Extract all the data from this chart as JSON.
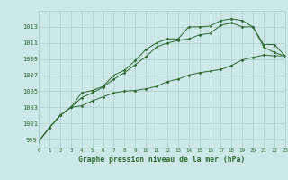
{
  "x": [
    0,
    1,
    2,
    3,
    4,
    5,
    6,
    7,
    8,
    9,
    10,
    11,
    12,
    13,
    14,
    15,
    16,
    17,
    18,
    19,
    20,
    21,
    22,
    23
  ],
  "line1": [
    998.8,
    1000.5,
    1002.0,
    1003.0,
    1003.2,
    1003.8,
    1004.3,
    1004.8,
    1005.0,
    1005.1,
    1005.3,
    1005.6,
    1006.2,
    1006.5,
    1007.0,
    1007.3,
    1007.5,
    1007.7,
    1008.2,
    1008.9,
    1009.2,
    1009.5,
    1009.4,
    1009.4
  ],
  "line2": [
    998.8,
    1000.5,
    1002.0,
    1003.0,
    1004.2,
    1004.8,
    1005.5,
    1006.5,
    1007.3,
    1008.3,
    1009.3,
    1010.5,
    1011.0,
    1011.3,
    1011.5,
    1012.0,
    1012.2,
    1013.2,
    1013.5,
    1013.0,
    1013.0,
    1010.5,
    1009.8,
    1009.4
  ],
  "line3": [
    998.8,
    1000.5,
    1002.0,
    1003.0,
    1004.8,
    1005.1,
    1005.6,
    1007.0,
    1007.6,
    1008.8,
    1010.2,
    1011.0,
    1011.5,
    1011.5,
    1013.0,
    1013.0,
    1013.1,
    1013.8,
    1014.0,
    1013.8,
    1013.0,
    1010.8,
    1010.8,
    1009.4
  ],
  "line_color": "#2d6a2d",
  "bg_color": "#cce8e8",
  "grid_color": "#aacece",
  "xlabel": "Graphe pression niveau de la mer (hPa)",
  "ylim": [
    998,
    1015
  ],
  "xlim": [
    0,
    23
  ],
  "yticks": [
    999,
    1001,
    1003,
    1005,
    1007,
    1009,
    1011,
    1013
  ],
  "xticks": [
    0,
    1,
    2,
    3,
    4,
    5,
    6,
    7,
    8,
    9,
    10,
    11,
    12,
    13,
    14,
    15,
    16,
    17,
    18,
    19,
    20,
    21,
    22,
    23
  ]
}
